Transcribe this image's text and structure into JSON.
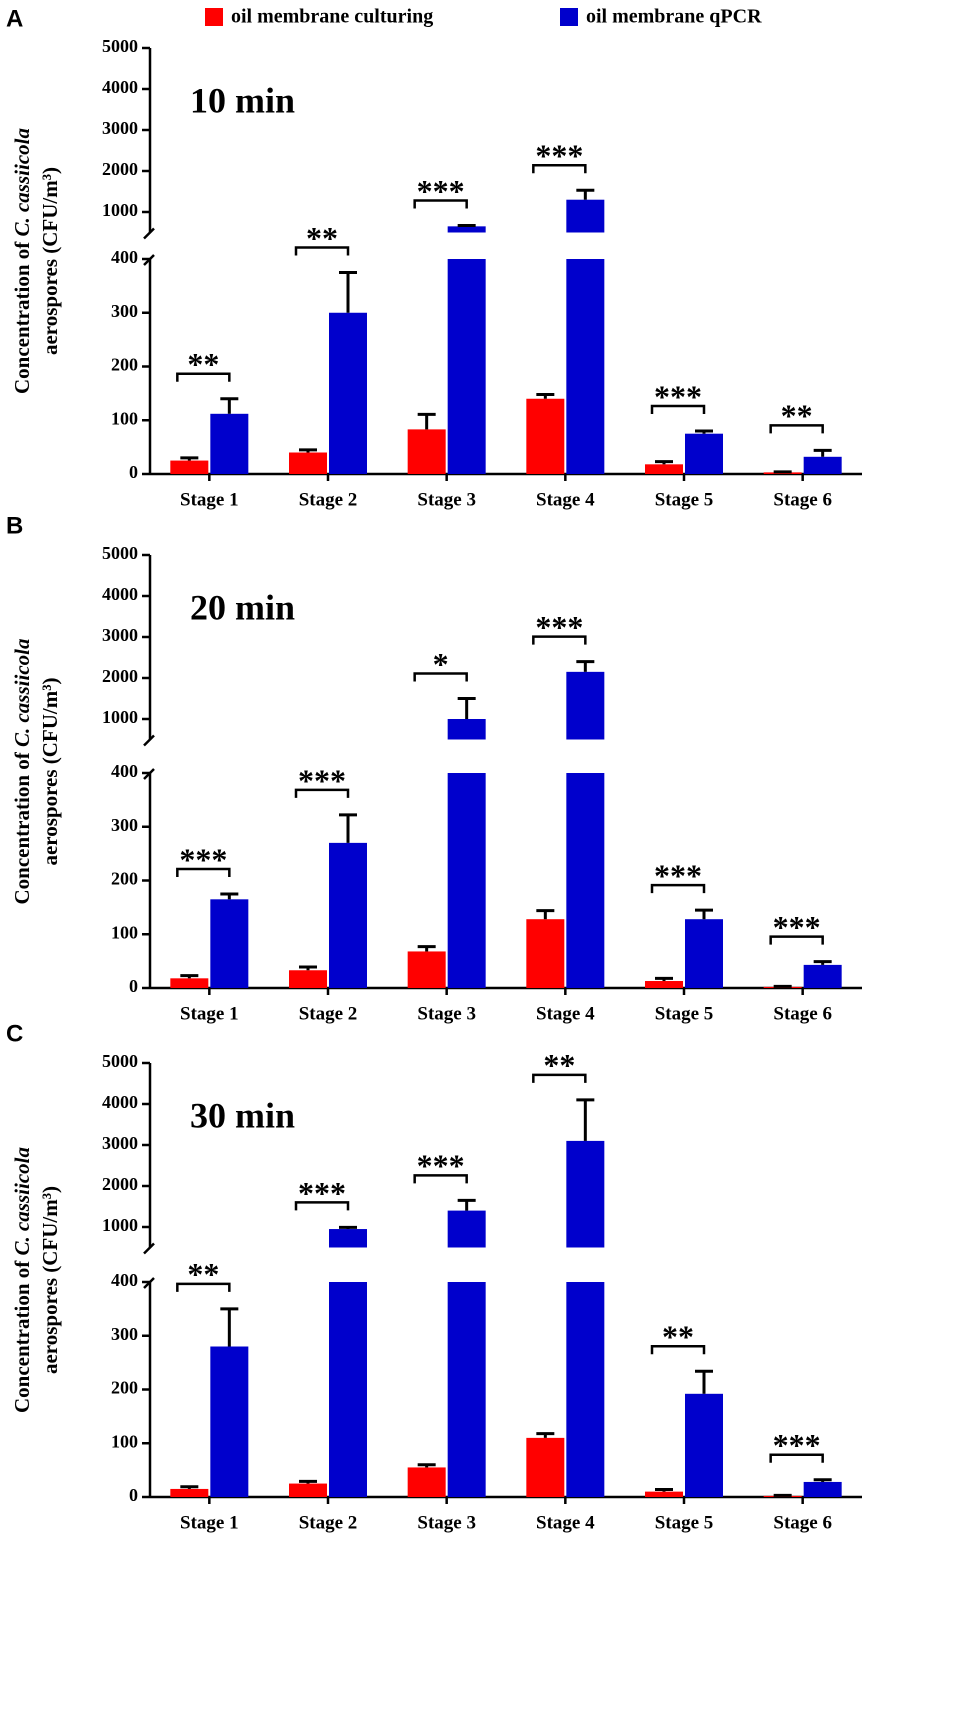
{
  "legend": [
    {
      "name": "oil membrane culturing",
      "color": "#ff0000"
    },
    {
      "name": "oil membrane qPCR",
      "color": "#0000cc"
    }
  ],
  "chart_data": [
    {
      "type": "bar",
      "panel": "A",
      "title": "10 min",
      "ylabel": [
        "Concentration of",
        "C. cassiicola",
        "aerospores (CFU/m³)"
      ],
      "categories": [
        "Stage 1",
        "Stage 2",
        "Stage 3",
        "Stage 4",
        "Stage 5",
        "Stage 6"
      ],
      "series": [
        {
          "values": [
            25,
            40,
            83,
            140,
            18,
            3
          ],
          "errors": [
            5,
            5,
            28,
            8,
            5,
            1
          ]
        },
        {
          "values": [
            112,
            300,
            650,
            1300,
            75,
            32
          ],
          "errors": [
            28,
            75,
            20,
            230,
            5,
            12
          ]
        }
      ],
      "significance": [
        "**",
        "**",
        "***",
        "***",
        "***",
        "**"
      ],
      "ylim": [
        0,
        5000
      ],
      "ybreak": [
        400,
        500
      ],
      "yticks": [
        0,
        100,
        200,
        300,
        400,
        1000,
        2000,
        3000,
        4000,
        5000
      ]
    },
    {
      "type": "bar",
      "panel": "B",
      "title": "20 min",
      "ylabel": [
        "Concentration of",
        "C. cassiicola",
        "aerospores (CFU/m³)"
      ],
      "categories": [
        "Stage 1",
        "Stage 2",
        "Stage 3",
        "Stage 4",
        "Stage 5",
        "Stage 6"
      ],
      "series": [
        {
          "values": [
            18,
            33,
            68,
            128,
            13,
            2
          ],
          "errors": [
            5,
            6,
            9,
            16,
            5,
            1
          ]
        },
        {
          "values": [
            165,
            270,
            1000,
            2150,
            128,
            43
          ],
          "errors": [
            10,
            52,
            500,
            250,
            17,
            6
          ]
        }
      ],
      "significance": [
        "***",
        "***",
        "*",
        "***",
        "***",
        "***"
      ],
      "ylim": [
        0,
        5000
      ],
      "ybreak": [
        400,
        500
      ],
      "yticks": [
        0,
        100,
        200,
        300,
        400,
        1000,
        2000,
        3000,
        4000,
        5000
      ]
    },
    {
      "type": "bar",
      "panel": "C",
      "title": "30 min",
      "ylabel": [
        "Concentration of",
        "C. cassiicola",
        "aerospores (CFU/m³)"
      ],
      "categories": [
        "Stage 1",
        "Stage 2",
        "Stage 3",
        "Stage 4",
        "Stage 5",
        "Stage 6"
      ],
      "series": [
        {
          "values": [
            15,
            25,
            55,
            110,
            10,
            2
          ],
          "errors": [
            4,
            4,
            5,
            8,
            4,
            1
          ]
        },
        {
          "values": [
            280,
            950,
            1400,
            3100,
            192,
            28
          ],
          "errors": [
            70,
            40,
            250,
            1000,
            42,
            4
          ]
        }
      ],
      "significance": [
        "**",
        "***",
        "***",
        "**",
        "**",
        "***"
      ],
      "ylim": [
        0,
        5000
      ],
      "ybreak": [
        400,
        500
      ],
      "yticks": [
        0,
        100,
        200,
        300,
        400,
        1000,
        2000,
        3000,
        4000,
        5000
      ]
    }
  ]
}
